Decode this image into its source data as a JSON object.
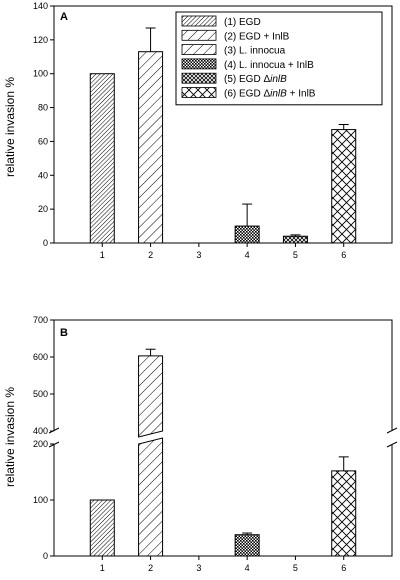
{
  "chart_data": [
    {
      "type": "bar",
      "panel": "A",
      "ylabel": "relative invasion %",
      "ylim": [
        0,
        140
      ],
      "yticks": [
        0,
        20,
        40,
        60,
        80,
        100,
        120,
        140
      ],
      "categories": [
        "1",
        "2",
        "3",
        "4",
        "5",
        "6"
      ],
      "values": [
        100,
        113,
        0,
        10,
        4,
        67
      ],
      "errors": [
        0,
        14,
        0,
        13,
        0.8,
        3
      ],
      "patterns": [
        "dense",
        "diag",
        "diag",
        "dots",
        "cross-fine",
        "cross"
      ],
      "legend": {
        "placement": "top-right",
        "entries": [
          {
            "number": "(1)",
            "label": "EGD"
          },
          {
            "number": "(2)",
            "label": "EGD + InlB"
          },
          {
            "number": "(3)",
            "label": "L. innocua"
          },
          {
            "number": "(4)",
            "label": "L. innocua + InlB"
          },
          {
            "number": "(5)",
            "label": "EGD Δ",
            "italic": "inlB",
            "suffix": ""
          },
          {
            "number": "(6)",
            "label": "EGD Δ",
            "italic": "inlB",
            "suffix": " + InlB"
          }
        ]
      }
    },
    {
      "type": "bar",
      "panel": "B",
      "ylabel": "relative invasion %",
      "broken_axis": true,
      "lower_range": [
        0,
        200
      ],
      "upper_range": [
        400,
        700
      ],
      "yticks_lower": [
        0,
        100,
        200
      ],
      "yticks_upper": [
        400,
        500,
        600,
        700
      ],
      "categories": [
        "1",
        "2",
        "3",
        "4",
        "5",
        "6"
      ],
      "values": [
        100,
        603,
        0,
        38,
        0,
        152
      ],
      "errors": [
        0,
        18,
        0,
        3,
        0,
        25
      ],
      "patterns": [
        "dense",
        "diag",
        "diag",
        "dots",
        "cross-fine",
        "cross"
      ]
    }
  ]
}
